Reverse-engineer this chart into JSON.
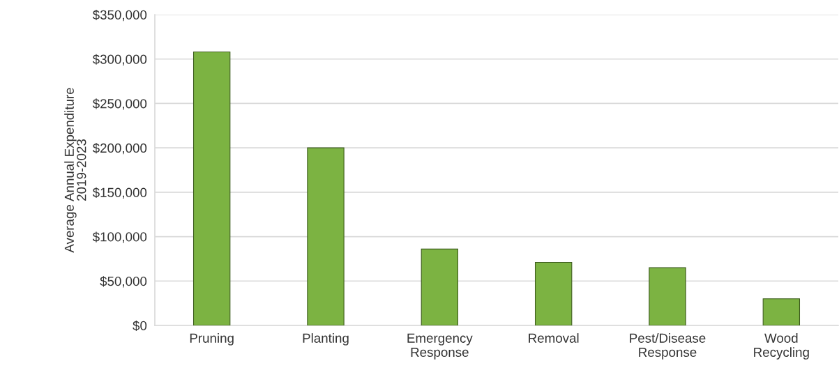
{
  "chart_data": {
    "type": "bar",
    "ylabel": "Average Annual Expenditure\n2019-2023",
    "categories": [
      "Pruning",
      "Planting",
      "Emergency\nResponse",
      "Removal",
      "Pest/Disease\nResponse",
      "Wood\nRecycling"
    ],
    "values": [
      308000,
      200000,
      86000,
      71000,
      65000,
      30000
    ],
    "color": "#7cb342",
    "ylim": [
      0,
      350000
    ],
    "yticks": [
      {
        "value": 0,
        "label": "$0"
      },
      {
        "value": 50000,
        "label": "$50,000"
      },
      {
        "value": 100000,
        "label": "$100,000"
      },
      {
        "value": 150000,
        "label": "$150,000"
      },
      {
        "value": 200000,
        "label": "$200,000"
      },
      {
        "value": 250000,
        "label": "$250,000"
      },
      {
        "value": 300000,
        "label": "$300,000"
      },
      {
        "value": 350000,
        "label": "$350,000"
      }
    ],
    "grid": "y"
  }
}
